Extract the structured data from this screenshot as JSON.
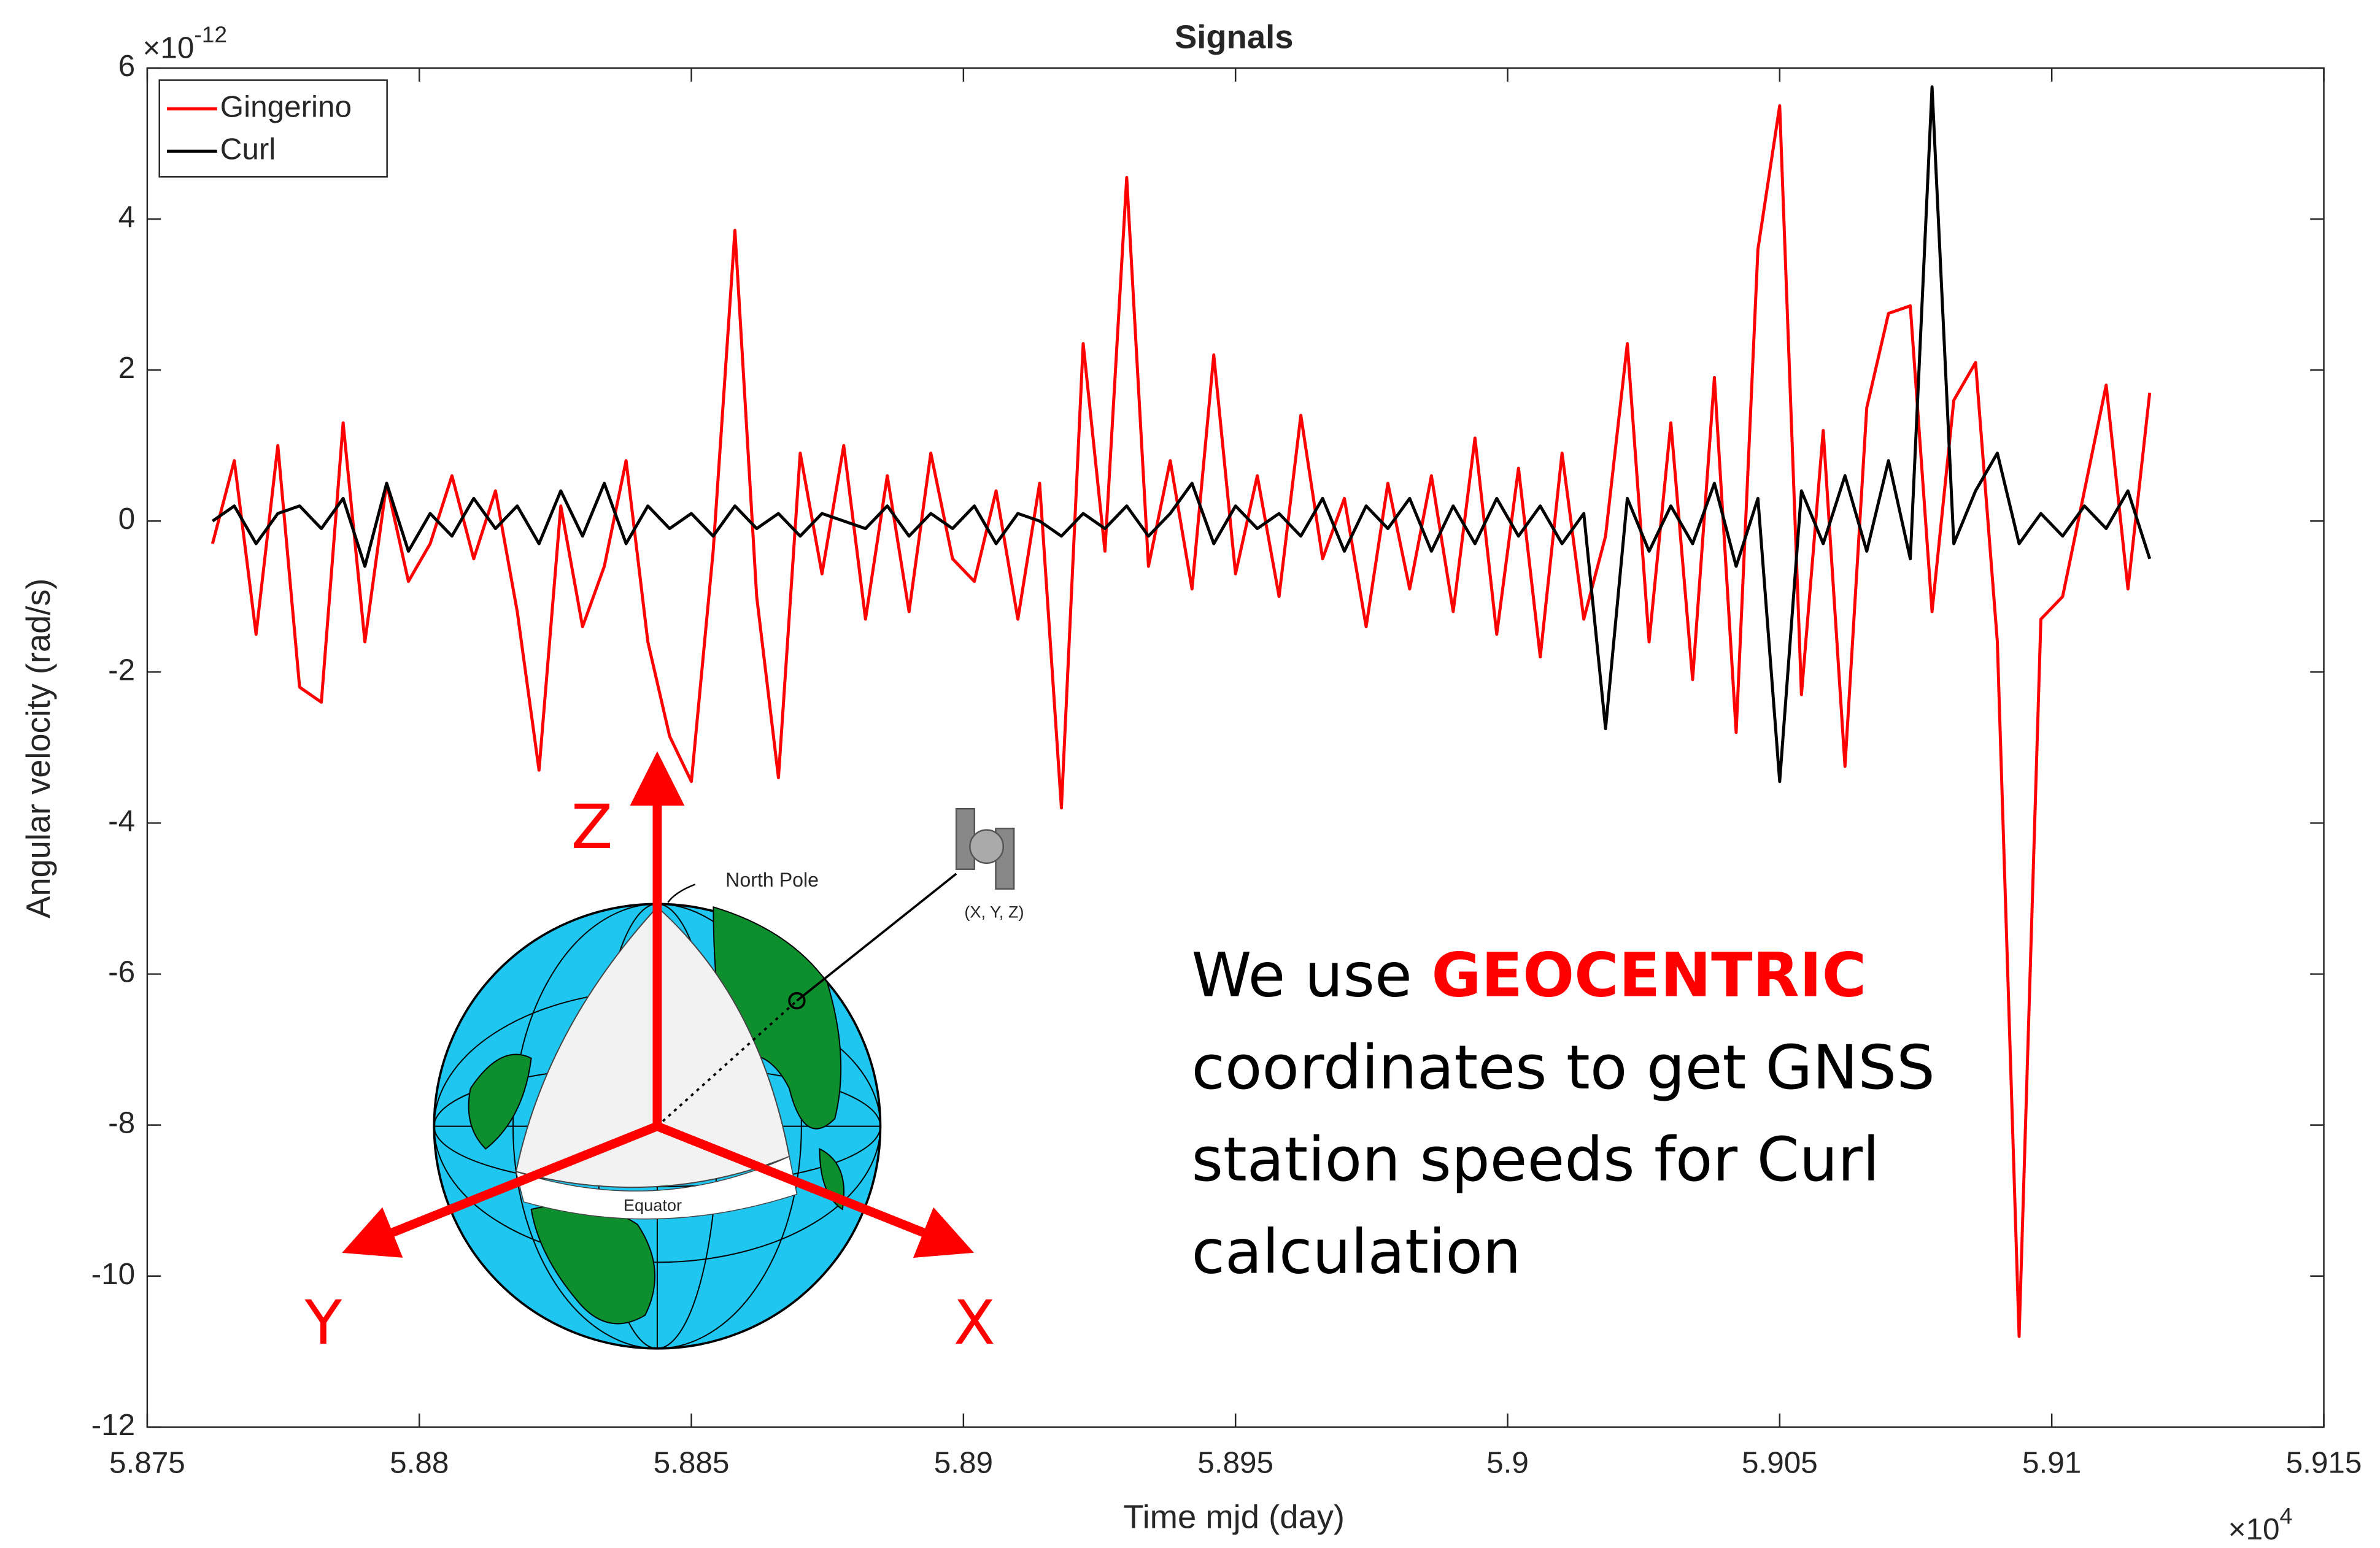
{
  "chart_data": {
    "type": "line",
    "title": "Signals",
    "xlabel": "Time mjd (day)",
    "ylabel": "Angular velocity (rad/s)",
    "x_exponent": {
      "base": "×10",
      "power": "4"
    },
    "y_exponent": {
      "base": "×10",
      "power": "-12"
    },
    "x": [
      5.8762,
      5.8766,
      5.877,
      5.8774,
      5.8778,
      5.8782,
      5.8786,
      5.879,
      5.8794,
      5.8798,
      5.8802,
      5.8806,
      5.881,
      5.8814,
      5.8818,
      5.8822,
      5.8826,
      5.883,
      5.8834,
      5.8838,
      5.8842,
      5.8846,
      5.885,
      5.8854,
      5.8858,
      5.8862,
      5.8866,
      5.887,
      5.8874,
      5.8878,
      5.8882,
      5.8886,
      5.889,
      5.8894,
      5.8898,
      5.8902,
      5.8906,
      5.891,
      5.8914,
      5.8918,
      5.8922,
      5.8926,
      5.893,
      5.8934,
      5.8938,
      5.8942,
      5.8946,
      5.895,
      5.8954,
      5.8958,
      5.8962,
      5.8966,
      5.897,
      5.8974,
      5.8978,
      5.8982,
      5.8986,
      5.899,
      5.8994,
      5.8998,
      5.9002,
      5.9006,
      5.901,
      5.9014,
      5.9018,
      5.9022,
      5.9026,
      5.903,
      5.9034,
      5.9038,
      5.9042,
      5.9046,
      5.905,
      5.9054,
      5.9058,
      5.9062,
      5.9066,
      5.907,
      5.9074,
      5.9078,
      5.9082,
      5.9086,
      5.909,
      5.9094,
      5.9098,
      5.9102,
      5.9106,
      5.911,
      5.9114,
      5.9118
    ],
    "series": [
      {
        "name": "Gingerino",
        "color": "#ff0000",
        "values": [
          -0.3,
          0.8,
          -1.5,
          1.0,
          -2.2,
          -2.4,
          1.3,
          -1.6,
          0.5,
          -0.8,
          -0.3,
          0.6,
          -0.5,
          0.4,
          -1.2,
          -3.3,
          0.2,
          -1.4,
          -0.6,
          0.8,
          -1.6,
          -2.85,
          -3.45,
          -0.4,
          3.85,
          -1.0,
          -3.4,
          0.9,
          -0.7,
          1.0,
          -1.3,
          0.6,
          -1.2,
          0.9,
          -0.5,
          -0.8,
          0.4,
          -1.3,
          0.5,
          -3.8,
          2.35,
          -0.4,
          4.55,
          -0.6,
          0.8,
          -0.9,
          2.2,
          -0.7,
          0.6,
          -1.0,
          1.4,
          -0.5,
          0.3,
          -1.4,
          0.5,
          -0.9,
          0.6,
          -1.2,
          1.1,
          -1.5,
          0.7,
          -1.8,
          0.9,
          -1.3,
          -0.2,
          2.35,
          -1.6,
          1.3,
          -2.1,
          1.9,
          -2.8,
          3.6,
          5.5,
          -2.3,
          1.2,
          -3.25,
          1.5,
          2.75,
          2.85,
          -1.2,
          1.6,
          2.1,
          -1.6,
          -10.8,
          -1.3,
          -1.0,
          0.4,
          1.8,
          -0.9,
          1.7
        ]
      },
      {
        "name": "Curl",
        "color": "#000000",
        "values": [
          0.0,
          0.2,
          -0.3,
          0.1,
          0.2,
          -0.1,
          0.3,
          -0.6,
          0.5,
          -0.4,
          0.1,
          -0.2,
          0.3,
          -0.1,
          0.2,
          -0.3,
          0.4,
          -0.2,
          0.5,
          -0.3,
          0.2,
          -0.1,
          0.1,
          -0.2,
          0.2,
          -0.1,
          0.1,
          -0.2,
          0.1,
          0.0,
          -0.1,
          0.2,
          -0.2,
          0.1,
          -0.1,
          0.2,
          -0.3,
          0.1,
          0.0,
          -0.2,
          0.1,
          -0.1,
          0.2,
          -0.2,
          0.1,
          0.5,
          -0.3,
          0.2,
          -0.1,
          0.1,
          -0.2,
          0.3,
          -0.4,
          0.2,
          -0.1,
          0.3,
          -0.4,
          0.2,
          -0.3,
          0.3,
          -0.2,
          0.2,
          -0.3,
          0.1,
          -2.75,
          0.3,
          -0.4,
          0.2,
          -0.3,
          0.5,
          -0.6,
          0.3,
          -3.45,
          0.4,
          -0.3,
          0.6,
          -0.4,
          0.8,
          -0.5,
          5.75,
          -0.3,
          0.4,
          0.9,
          -0.3,
          0.1,
          -0.2,
          0.2,
          -0.1,
          0.4,
          -0.5
        ]
      }
    ],
    "xlim": [
      5.875,
      5.915
    ],
    "xticks": [
      5.875,
      5.88,
      5.885,
      5.89,
      5.895,
      5.9,
      5.905,
      5.91,
      5.915
    ],
    "ylim": [
      -12,
      6
    ],
    "yticks": [
      -12,
      -10,
      -8,
      -6,
      -4,
      -2,
      0,
      2,
      4,
      6
    ],
    "grid": false,
    "legend": "upper left",
    "annotations": {
      "axis_labels": [
        "Z",
        "Y",
        "X"
      ],
      "north_pole": "North Pole",
      "satellite": "(X, Y, Z)",
      "equator": "Equator",
      "text_lines": [
        [
          "We use ",
          "GEOCENTRIC"
        ],
        [
          "coordinates to get GNSS"
        ],
        [
          "station speeds for Curl"
        ],
        [
          "calculation"
        ]
      ]
    }
  }
}
